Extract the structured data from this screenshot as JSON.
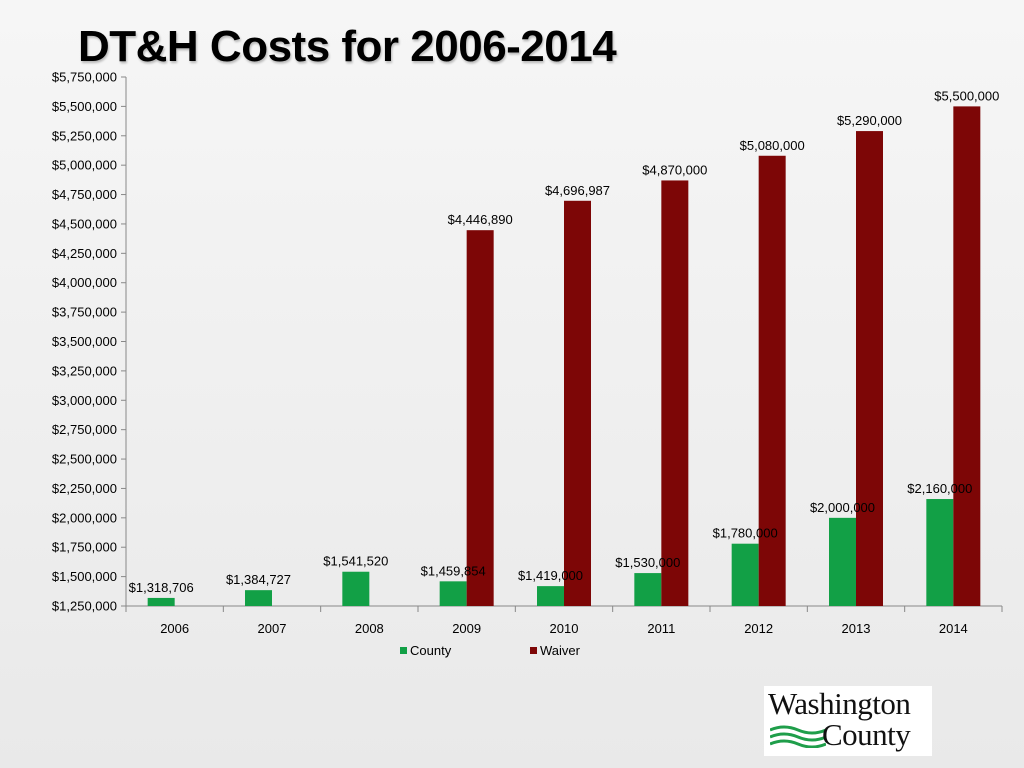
{
  "slide": {
    "title": "DT&H Costs for 2006-2014"
  },
  "logo": {
    "line1": "Washington",
    "line2": "County"
  },
  "colors": {
    "county": "#12a046",
    "waiver": "#7d0606",
    "axis": "#888888",
    "background": "#f0f0f0"
  },
  "chart_data": {
    "type": "bar",
    "title": "DT&H Costs for 2006-2014",
    "xlabel": "",
    "ylabel": "",
    "ylim": [
      1250000,
      5750000
    ],
    "ytick_step": 250000,
    "yticks": [
      "$1,250,000",
      "$1,500,000",
      "$1,750,000",
      "$2,000,000",
      "$2,250,000",
      "$2,500,000",
      "$2,750,000",
      "$3,000,000",
      "$3,250,000",
      "$3,500,000",
      "$3,750,000",
      "$4,000,000",
      "$4,250,000",
      "$4,500,000",
      "$4,750,000",
      "$5,000,000",
      "$5,250,000",
      "$5,500,000",
      "$5,750,000"
    ],
    "grid": false,
    "legend_position": "bottom",
    "categories": [
      "2006",
      "2007",
      "2008",
      "2009",
      "2010",
      "2011",
      "2012",
      "2013",
      "2014"
    ],
    "series": [
      {
        "name": "County",
        "values": [
          1318706,
          1384727,
          1541520,
          1459854,
          1419000,
          1530000,
          1780000,
          2000000,
          2160000
        ],
        "labels": [
          "$1,318,706",
          "$1,384,727",
          "$1,541,520",
          "$1,459,854",
          "$1,419,000",
          "$1,530,000",
          "$1,780,000",
          "$2,000,000",
          "$2,160,000"
        ]
      },
      {
        "name": "Waiver",
        "values": [
          null,
          null,
          null,
          4446890,
          4696987,
          4870000,
          5080000,
          5290000,
          5500000
        ],
        "labels": [
          null,
          null,
          null,
          "$4,446,890",
          "$4,696,987",
          "$4,870,000",
          "$5,080,000",
          "$5,290,000",
          "$5,500,000"
        ]
      }
    ]
  }
}
